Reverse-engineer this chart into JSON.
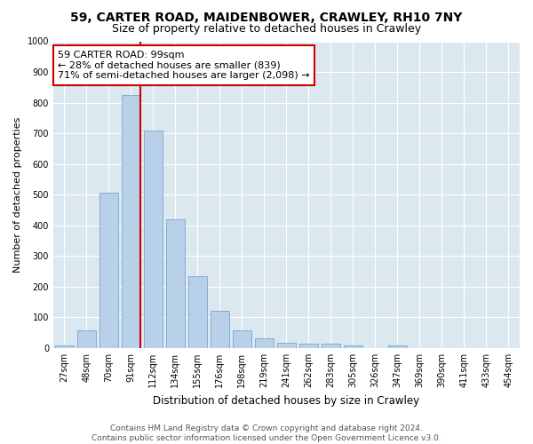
{
  "title1": "59, CARTER ROAD, MAIDENBOWER, CRAWLEY, RH10 7NY",
  "title2": "Size of property relative to detached houses in Crawley",
  "xlabel": "Distribution of detached houses by size in Crawley",
  "ylabel": "Number of detached properties",
  "bar_labels": [
    "27sqm",
    "48sqm",
    "70sqm",
    "91sqm",
    "112sqm",
    "134sqm",
    "155sqm",
    "176sqm",
    "198sqm",
    "219sqm",
    "241sqm",
    "262sqm",
    "283sqm",
    "305sqm",
    "326sqm",
    "347sqm",
    "369sqm",
    "390sqm",
    "411sqm",
    "433sqm",
    "454sqm"
  ],
  "bar_values": [
    8,
    58,
    505,
    825,
    710,
    420,
    233,
    120,
    57,
    33,
    17,
    15,
    15,
    8,
    0,
    8,
    0,
    0,
    0,
    0,
    0
  ],
  "bar_color": "#b8d0e8",
  "bar_edge_color": "#6699cc",
  "vline_color": "#cc0000",
  "annotation_text": "59 CARTER ROAD: 99sqm\n← 28% of detached houses are smaller (839)\n71% of semi-detached houses are larger (2,098) →",
  "annotation_box_color": "#ffffff",
  "annotation_box_edge": "#cc0000",
  "ylim": [
    0,
    1000
  ],
  "yticks": [
    0,
    100,
    200,
    300,
    400,
    500,
    600,
    700,
    800,
    900,
    1000
  ],
  "bg_color": "#dce8f0",
  "footer": "Contains HM Land Registry data © Crown copyright and database right 2024.\nContains public sector information licensed under the Open Government Licence v3.0.",
  "title1_fontsize": 10,
  "title2_fontsize": 9,
  "xlabel_fontsize": 8.5,
  "ylabel_fontsize": 8,
  "tick_fontsize": 7,
  "annotation_fontsize": 8,
  "footer_fontsize": 6.5
}
